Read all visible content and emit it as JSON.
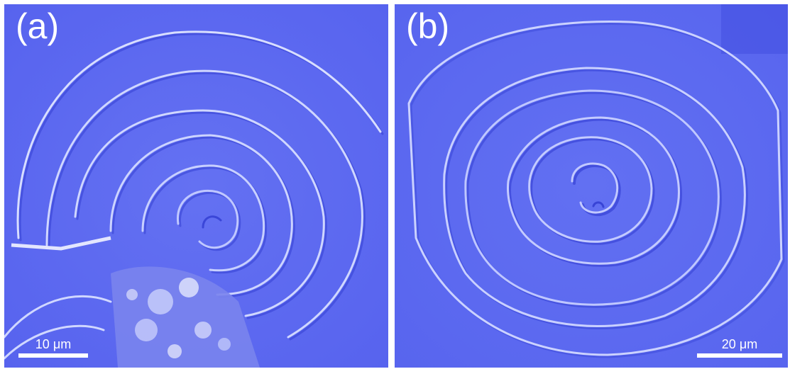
{
  "panels": [
    {
      "label": "(a)",
      "scale_bar": "10 μm"
    },
    {
      "label": "(b)",
      "scale_bar": "20 μm"
    }
  ],
  "colors": {
    "background": "#5a66f0",
    "ridge_light": "#c8d0ff",
    "ridge_shadow": "#2f3bd0",
    "label": "#ffffff"
  }
}
